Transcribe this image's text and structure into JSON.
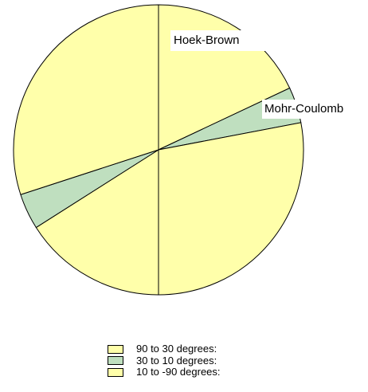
{
  "chart_data": {
    "type": "pie",
    "categories": [
      "Hoek-Brown",
      "Mohr-Coulomb"
    ],
    "slices": [
      {
        "label": "",
        "value": 18,
        "color": "#ffffaa"
      },
      {
        "label": "Mohr-Coulomb",
        "value": 4,
        "color": "#bfdfbf"
      },
      {
        "label": "",
        "value": 28,
        "color": "#ffffaa"
      },
      {
        "label": "",
        "value": 16,
        "color": "#ffffaa"
      },
      {
        "label": "",
        "value": 4,
        "color": "#bfdfbf"
      },
      {
        "label": "Hoek-Brown",
        "value": 30,
        "color": "#ffffaa"
      }
    ],
    "legend": [
      {
        "label": "90 to 30 degrees:",
        "color": "#ffffaa"
      },
      {
        "label": "30 to 10 degrees:",
        "color": "#bfdfbf"
      },
      {
        "label": "10 to -90 degrees:",
        "color": "#ffffaa"
      }
    ],
    "legend_position": "bottom-center"
  }
}
